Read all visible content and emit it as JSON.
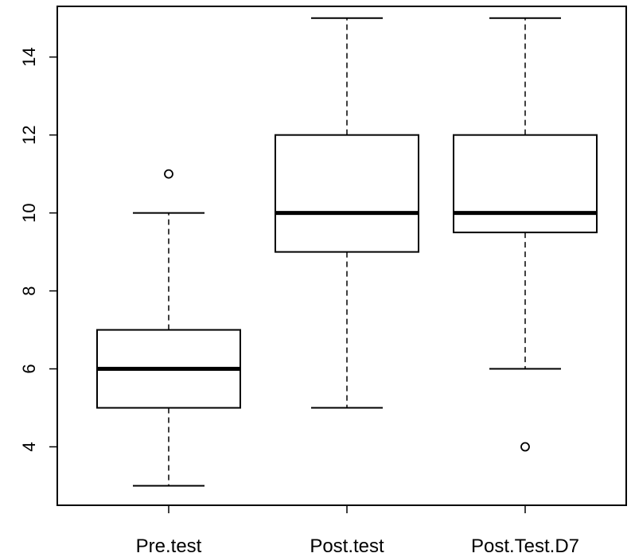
{
  "chart_data": {
    "type": "boxplot",
    "title": "",
    "xlabel": "",
    "ylabel": "",
    "ylim": [
      2.5,
      15.3
    ],
    "yticks": [
      "4",
      "6",
      "8",
      "10",
      "12",
      "14"
    ],
    "grid": false,
    "legend": "none",
    "categories": [
      "Pre.test",
      "Post.test",
      "Post.Test.D7"
    ],
    "boxes": [
      {
        "label": "Pre.test",
        "whisker_low": 3,
        "q1": 5,
        "median": 6,
        "q3": 7,
        "whisker_high": 10,
        "outliers": [
          11
        ]
      },
      {
        "label": "Post.test",
        "whisker_low": 5,
        "q1": 9,
        "median": 10,
        "q3": 12,
        "whisker_high": 15,
        "outliers": []
      },
      {
        "label": "Post.Test.D7",
        "whisker_low": 6,
        "q1": 9.5,
        "median": 10,
        "q3": 12,
        "whisker_high": 15,
        "outliers": [
          4
        ]
      }
    ]
  }
}
